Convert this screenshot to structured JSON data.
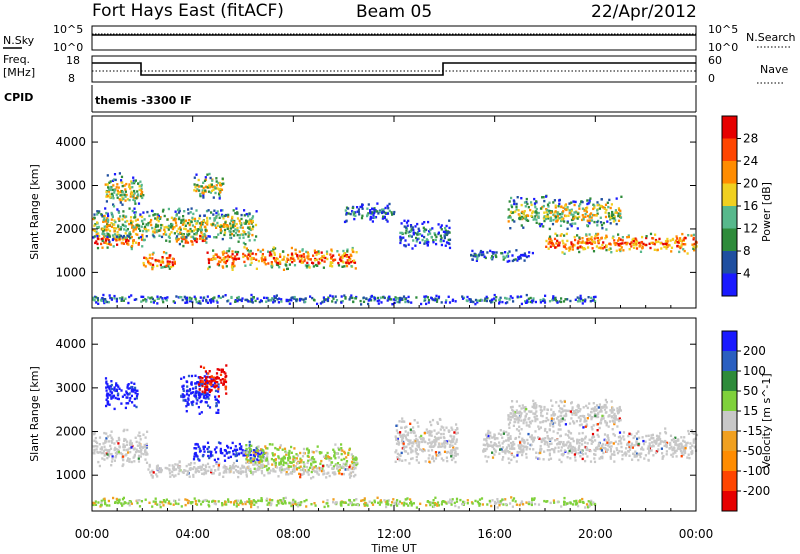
{
  "header": {
    "station": "Fort Hays East (fitACF)",
    "beam": "Beam 05",
    "date": "22/Apr/2012"
  },
  "top_panels": {
    "nsky_label": "N.Sky",
    "nsearch_label": "N.Search",
    "nsky_ticks": [
      "10^5",
      "10^0"
    ],
    "nsearch_ticks": [
      "10^5",
      "10^0"
    ],
    "freq_label_1": "Freq.",
    "freq_label_2": "[MHz]",
    "freq_ticks": [
      "18",
      "8"
    ],
    "nave_label": "Nave",
    "nave_ticks": [
      "60",
      "0"
    ],
    "cpid_label": "CPID",
    "cpid_text": "themis -3300 IF"
  },
  "colors": {
    "power_scale": [
      "#1a1aff",
      "#1f4fa0",
      "#2e8b3a",
      "#57b88c",
      "#f0d020",
      "#ff8c00",
      "#ff4500",
      "#e60000"
    ],
    "velocity_scale": [
      "#1a1aff",
      "#2a5fc0",
      "#2e8b3a",
      "#7fd13b",
      "#c8c8c8",
      "#f0a020",
      "#ff8c00",
      "#ff4500",
      "#e60000"
    ]
  },
  "chart_data": [
    {
      "type": "heatmap",
      "title": "",
      "xlabel": "Time UT",
      "ylabel": "Slant Range [km]",
      "x_ticks": [
        "00:00",
        "04:00",
        "08:00",
        "12:00",
        "16:00",
        "20:00",
        "00:00"
      ],
      "y_ticks": [
        "1000",
        "2000",
        "3000",
        "4000"
      ],
      "xlim_hours": [
        0,
        24
      ],
      "ylim_km": [
        180,
        4600
      ],
      "colorbar": {
        "label": "Power [dB]",
        "ticks": [
          "28",
          "24",
          "20",
          "16",
          "12",
          "8",
          "4"
        ],
        "range": [
          0,
          30
        ]
      },
      "echo_bands": [
        {
          "t0": 0.0,
          "t1": 2.0,
          "r": 1750,
          "w": 220,
          "level": "high"
        },
        {
          "t0": 2.0,
          "t1": 3.3,
          "r": 1300,
          "w": 250,
          "level": "high"
        },
        {
          "t0": 3.3,
          "t1": 4.5,
          "r": 1800,
          "w": 200,
          "level": "high"
        },
        {
          "t0": 4.5,
          "t1": 10.5,
          "r": 1350,
          "w": 280,
          "level": "high"
        },
        {
          "t0": 0.0,
          "t1": 6.5,
          "r": 2100,
          "w": 450,
          "level": "mid"
        },
        {
          "t0": 0.5,
          "t1": 2.0,
          "r": 2900,
          "w": 450,
          "level": "mid"
        },
        {
          "t0": 4.0,
          "t1": 5.2,
          "r": 3000,
          "w": 350,
          "level": "mid"
        },
        {
          "t0": 10.0,
          "t1": 12.0,
          "r": 2400,
          "w": 250,
          "level": "low"
        },
        {
          "t0": 12.2,
          "t1": 14.2,
          "r": 1900,
          "w": 350,
          "level": "low"
        },
        {
          "t0": 15.0,
          "t1": 17.5,
          "r": 1400,
          "w": 150,
          "level": "low"
        },
        {
          "t0": 16.5,
          "t1": 21.0,
          "r": 2400,
          "w": 400,
          "level": "mid"
        },
        {
          "t0": 18.0,
          "t1": 24.0,
          "r": 1700,
          "w": 250,
          "level": "high"
        },
        {
          "t0": 0.0,
          "t1": 20.0,
          "r": 400,
          "w": 120,
          "level": "low"
        }
      ]
    },
    {
      "type": "heatmap",
      "title": "",
      "xlabel": "Time UT",
      "ylabel": "Slant Range [km]",
      "x_ticks": [
        "00:00",
        "04:00",
        "08:00",
        "12:00",
        "16:00",
        "20:00",
        "00:00"
      ],
      "y_ticks": [
        "1000",
        "2000",
        "3000",
        "4000"
      ],
      "xlim_hours": [
        0,
        24
      ],
      "ylim_km": [
        180,
        4600
      ],
      "colorbar": {
        "label": "Velocity [m s^-1]",
        "ticks": [
          "200",
          "100",
          "50",
          "15",
          "-15",
          "-50",
          "-100",
          "-200"
        ],
        "range": [
          -250,
          250
        ]
      },
      "echo_bands": [
        {
          "t0": 0.0,
          "t1": 2.2,
          "r": 1650,
          "w": 450,
          "vel": "ground"
        },
        {
          "t0": 0.5,
          "t1": 1.8,
          "r": 2900,
          "w": 400,
          "vel": "toward"
        },
        {
          "t0": 3.5,
          "t1": 5.0,
          "r": 2900,
          "w": 500,
          "vel": "toward"
        },
        {
          "t0": 4.2,
          "t1": 5.3,
          "r": 3200,
          "w": 400,
          "vel": "away"
        },
        {
          "t0": 4.0,
          "t1": 6.8,
          "r": 1550,
          "w": 250,
          "vel": "toward"
        },
        {
          "t0": 6.0,
          "t1": 10.5,
          "r": 1400,
          "w": 350,
          "vel": "slow-toward"
        },
        {
          "t0": 2.2,
          "t1": 10.5,
          "r": 1150,
          "w": 200,
          "vel": "ground"
        },
        {
          "t0": 12.0,
          "t1": 14.5,
          "r": 1800,
          "w": 600,
          "vel": "ground"
        },
        {
          "t0": 15.5,
          "t1": 24.0,
          "r": 1700,
          "w": 400,
          "vel": "ground"
        },
        {
          "t0": 16.5,
          "t1": 21.0,
          "r": 2400,
          "w": 400,
          "vel": "ground"
        },
        {
          "t0": 0.0,
          "t1": 20.0,
          "r": 400,
          "w": 120,
          "vel": "slow-toward"
        }
      ]
    }
  ]
}
